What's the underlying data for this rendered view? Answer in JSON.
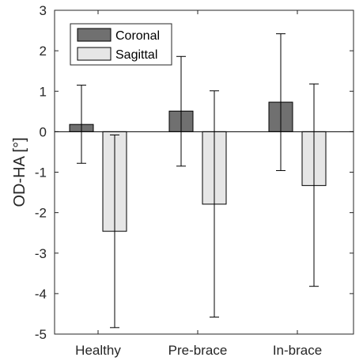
{
  "chart_data": {
    "type": "bar",
    "title": "",
    "xlabel": "",
    "ylabel": "OD-HA [°]",
    "categories": [
      "Healthy",
      "Pre-brace",
      "In-brace"
    ],
    "ylim": [
      -5,
      3
    ],
    "yticks": [
      3,
      2,
      1,
      0,
      -1,
      -2,
      -3,
      -4,
      -5
    ],
    "series": [
      {
        "name": "Coronal",
        "color": "#707070",
        "values": [
          0.18,
          0.51,
          0.73
        ],
        "error_low": [
          -0.78,
          -0.85,
          -0.96
        ],
        "error_high": [
          1.15,
          1.86,
          2.42
        ]
      },
      {
        "name": "Sagittal",
        "color": "#e6e6e6",
        "values": [
          -2.46,
          -1.79,
          -1.33
        ],
        "error_low": [
          -4.84,
          -4.58,
          -3.82
        ],
        "error_high": [
          -0.08,
          1.01,
          1.18
        ]
      }
    ],
    "legend_position": "top-left",
    "grid": false
  }
}
